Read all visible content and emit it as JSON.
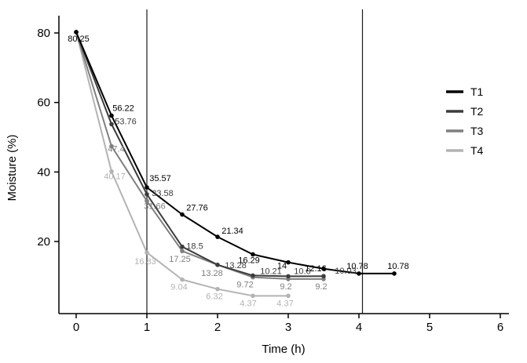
{
  "figure": {
    "background": "#ffffff",
    "axis_color": "#000000"
  },
  "chart_data": {
    "type": "line",
    "title": "",
    "xlabel": "Time (h)",
    "ylabel": "Moisture (%)",
    "xticks": [
      0,
      1,
      2,
      3,
      4,
      5,
      6
    ],
    "yticks": [
      20,
      40,
      60,
      80
    ],
    "xlim": [
      -0.3,
      6.3
    ],
    "ylim": [
      0,
      85
    ],
    "grid": false,
    "legend_position": "right",
    "reference_vlines": [
      1,
      4.05
    ],
    "series": [
      {
        "name": "T1",
        "color": "#000000",
        "x": [
          0,
          0.5,
          1,
          1.5,
          2,
          2.5,
          3,
          3.5,
          4,
          4.5
        ],
        "y": [
          80.25,
          56.22,
          35.57,
          27.76,
          21.34,
          16.29,
          14,
          12.16,
          10.78,
          10.78
        ],
        "labels": [
          "80.25",
          "56.22",
          "35.57",
          "27.76",
          "21.34",
          "16.29",
          "14",
          "12.16",
          "10.78",
          "10.78"
        ],
        "label_offsets": [
          [
            3,
            12
          ],
          [
            15,
            -6
          ],
          [
            17,
            -8
          ],
          [
            19,
            -5
          ],
          [
            19,
            -4
          ],
          [
            -5,
            11
          ],
          [
            -8,
            8
          ],
          [
            -10,
            3
          ],
          [
            -2,
            -6
          ],
          [
            5,
            -6
          ]
        ]
      },
      {
        "name": "T2",
        "color": "#3d3d3d",
        "x": [
          0,
          0.5,
          1,
          1.5,
          2,
          2.5,
          3,
          3.5
        ],
        "y": [
          80.25,
          53.76,
          33.58,
          18.5,
          13.28,
          10.21,
          10.0,
          10.03
        ],
        "labels": [
          "",
          "53.76",
          "33.58",
          "18.5",
          "13.28",
          "10.21",
          "10.0",
          "10.03"
        ],
        "label_offsets": [
          [
            0,
            0
          ],
          [
            18,
            0
          ],
          [
            20,
            2
          ],
          [
            16,
            3
          ],
          [
            23,
            4
          ],
          [
            23,
            -2
          ],
          [
            18,
            -3
          ],
          [
            28,
            -3
          ]
        ]
      },
      {
        "name": "T3",
        "color": "#7f7f7f",
        "x": [
          0,
          0.5,
          1,
          1.5,
          2,
          2.5,
          3,
          3.5
        ],
        "y": [
          80.25,
          47.4,
          31.66,
          17.25,
          13.28,
          9.72,
          9.2,
          9.2
        ],
        "labels": [
          "",
          "47.4",
          "31.66",
          "17.25",
          "13.28",
          "9.72",
          "9.2",
          "9.2"
        ],
        "label_offsets": [
          [
            0,
            0
          ],
          [
            6,
            7
          ],
          [
            10,
            10
          ],
          [
            -3,
            14
          ],
          [
            -7,
            14
          ],
          [
            -10,
            13
          ],
          [
            -3,
            13
          ],
          [
            -3,
            13
          ]
        ]
      },
      {
        "name": "T4",
        "color": "#b3b3b3",
        "x": [
          0,
          0.5,
          1,
          1.5,
          2,
          2.5,
          3
        ],
        "y": [
          80.25,
          40.17,
          16.83,
          9.04,
          6.32,
          4.37,
          4.37
        ],
        "labels": [
          "",
          "40.17",
          "16.83",
          "9.04",
          "6.32",
          "4.37",
          "4.37"
        ],
        "label_offsets": [
          [
            0,
            0
          ],
          [
            4,
            10
          ],
          [
            -2,
            15
          ],
          [
            -4,
            13
          ],
          [
            -4,
            13
          ],
          [
            -6,
            13
          ],
          [
            -4,
            13
          ]
        ]
      }
    ]
  }
}
